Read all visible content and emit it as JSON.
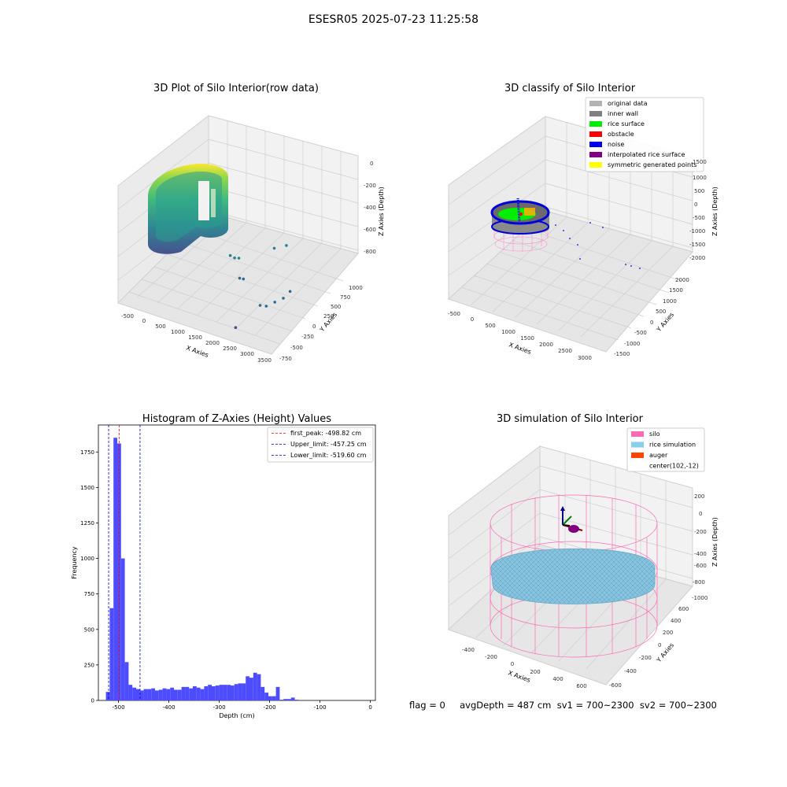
{
  "suptitle": "ESESR05 2025-07-23 11:25:58",
  "footer": "flag = 0     avgDepth = 487 cm  sv1 = 700~2300  sv2 = 700~2300",
  "chart_data": [
    {
      "type": "scatter3d",
      "title": "3D Plot of Silo Interior(row data)",
      "xlabel": "X Axies",
      "ylabel": "Y Axies",
      "zlabel": "Z Axies (Depth)",
      "xticks": [
        "-500",
        "0",
        "500",
        "1000",
        "1500",
        "2000",
        "2500",
        "3000",
        "3500"
      ],
      "yticks": [
        "-750",
        "-500",
        "-250",
        "0",
        "250",
        "500",
        "750",
        "1000"
      ],
      "zticks": [
        "-800",
        "-600",
        "-400",
        "-200",
        "0"
      ],
      "colormap": "viridis",
      "points": [
        {
          "x": 1400,
          "y": -50,
          "z": -560
        },
        {
          "x": 1450,
          "y": 0,
          "z": -600
        },
        {
          "x": 1500,
          "y": 50,
          "z": -620
        },
        {
          "x": 1700,
          "y": -80,
          "z": -720
        },
        {
          "x": 1750,
          "y": -40,
          "z": -740
        },
        {
          "x": 2000,
          "y": 400,
          "z": -640
        },
        {
          "x": 2200,
          "y": 500,
          "z": -640
        },
        {
          "x": 2500,
          "y": -250,
          "z": -800
        },
        {
          "x": 2600,
          "y": -200,
          "z": -820
        },
        {
          "x": 2700,
          "y": -100,
          "z": -820
        },
        {
          "x": 2800,
          "y": 0,
          "z": -820
        },
        {
          "x": 2850,
          "y": 100,
          "z": -800
        },
        {
          "x": 2300,
          "y": -600,
          "z": -860
        }
      ]
    },
    {
      "type": "scatter3d",
      "title": "3D classify of Silo Interior",
      "xlabel": "X Axies",
      "ylabel": "Y Axies",
      "zlabel": "Z Axies (Depth)",
      "xticks": [
        "-500",
        "0",
        "500",
        "1000",
        "1500",
        "2000",
        "2500",
        "3000"
      ],
      "yticks": [
        "-1500",
        "-1000",
        "-500",
        "0",
        "500",
        "1000",
        "1500",
        "2000"
      ],
      "zticks": [
        "-2000",
        "-1500",
        "-1000",
        "-500",
        "0",
        "500",
        "1000",
        "1500"
      ],
      "legend_loc": "upper right",
      "legend": [
        {
          "label": "original data",
          "color": "#b3b3b3"
        },
        {
          "label": "inner wall",
          "color": "#808080"
        },
        {
          "label": "rice surface",
          "color": "#00ee00"
        },
        {
          "label": "obstacle",
          "color": "#ff0000"
        },
        {
          "label": "noise",
          "color": "#0000ee"
        },
        {
          "label": "interpolated rice surface",
          "color": "#800080"
        },
        {
          "label": "symmetric generated points",
          "color": "#ffff00"
        }
      ]
    },
    {
      "type": "histogram",
      "title": "Histogram of Z-Axies (Height) Values",
      "xlabel": "Depth (cm)",
      "ylabel": "Frequency",
      "xlim": [
        -540,
        10
      ],
      "ylim": [
        0,
        1940
      ],
      "xticks": [
        -500,
        -400,
        -300,
        -200,
        -100,
        0
      ],
      "yticks": [
        0,
        250,
        500,
        750,
        1000,
        1250,
        1500,
        1750
      ],
      "bin_start": -525,
      "bin_width": 7.5,
      "values": [
        60,
        650,
        1850,
        1810,
        1000,
        270,
        110,
        90,
        80,
        70,
        80,
        80,
        85,
        70,
        75,
        85,
        80,
        90,
        75,
        75,
        95,
        95,
        85,
        100,
        90,
        80,
        100,
        110,
        100,
        105,
        110,
        110,
        110,
        105,
        115,
        120,
        120,
        170,
        160,
        195,
        185,
        95,
        55,
        30,
        30,
        95,
        5,
        10,
        10,
        20,
        5
      ],
      "bar_color": "#4d4dff",
      "vlines": [
        {
          "label": "first_peak: -498.82 cm",
          "x": -498.82,
          "color": "#ff0000"
        },
        {
          "label": "Upper_limit: -457.25 cm",
          "x": -457.25,
          "color": "#0000cc"
        },
        {
          "label": "Lower_limit: -519.60 cm",
          "x": -519.6,
          "color": "#0000cc"
        }
      ],
      "legend_loc": "upper right"
    },
    {
      "type": "surface3d",
      "title": "3D simulation of Silo Interior",
      "xlabel": "X Axies",
      "ylabel": "Y Axies",
      "zlabel": "Z Axies (Depth)",
      "xticks": [
        "-400",
        "-200",
        "0",
        "200",
        "400",
        "600"
      ],
      "yticks": [
        "-600",
        "-400",
        "-200",
        "0",
        "200",
        "400",
        "600"
      ],
      "zticks": [
        "-1000",
        "-800",
        "-600",
        "-400",
        "-200",
        "0",
        "200"
      ],
      "legend_loc": "upper right",
      "legend": [
        {
          "label": "silo",
          "color": "#ff69b4"
        },
        {
          "label": "rice simulation",
          "color": "#87ceeb"
        },
        {
          "label": "auger",
          "color": "#ff4500"
        },
        {
          "label": "center(102,-12)",
          "color": "#ffffff"
        }
      ]
    }
  ]
}
